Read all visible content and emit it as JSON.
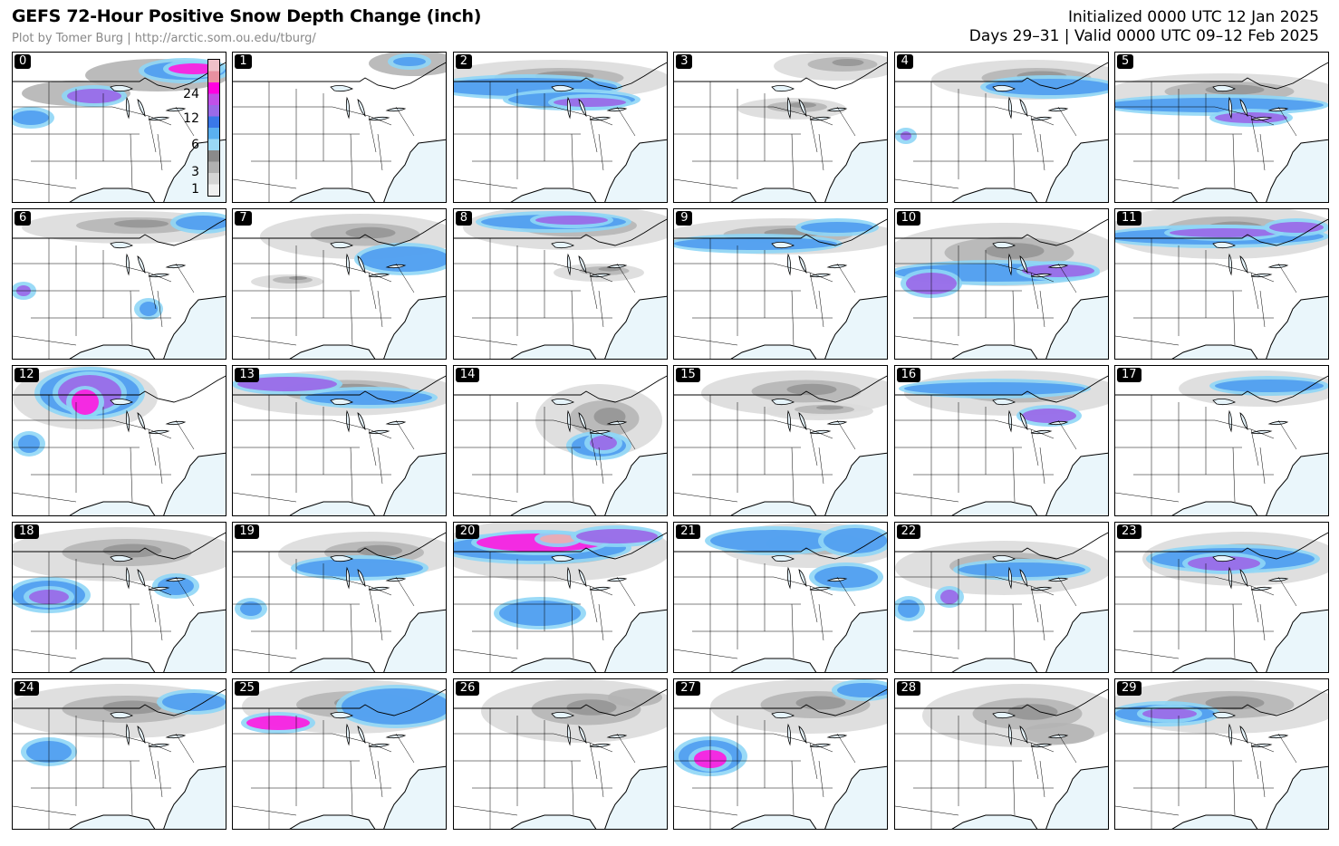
{
  "header": {
    "title": "GEFS 72-Hour Positive Snow Depth Change (inch)",
    "credit": "Plot by Tomer Burg | http://arctic.som.ou.edu/tburg/",
    "initialized": "Initialized 0000 UTC 12 Jan 2025",
    "valid": "Days 29–31 | Valid 0000 UTC 09–12 Feb 2025"
  },
  "colorbar": {
    "ticks": [
      "24",
      "12",
      "6",
      "3",
      "1"
    ],
    "colors": [
      "#f0f0f0",
      "#d4d4d4",
      "#b0b0b0",
      "#8a8a8a",
      "#9ad8f5",
      "#5ab0f0",
      "#3a78e8",
      "#9a6ae8",
      "#c050e8",
      "#ff00e0",
      "#e890a0",
      "#f0c0c8"
    ]
  },
  "colors": {
    "ocean": "#eaf6fb",
    "land": "#ffffff",
    "light_snow": "#dcdcdc",
    "mid_snow": "#b4b4b4",
    "dark_snow": "#8c8c8c",
    "cyan": "#8fd6f6",
    "blue": "#4f9cf0",
    "purple": "#9a66e8",
    "magenta": "#ff18e0",
    "pink": "#f0a8b0"
  },
  "members": [
    {
      "label": "0"
    },
    {
      "label": "1"
    },
    {
      "label": "2"
    },
    {
      "label": "3"
    },
    {
      "label": "4"
    },
    {
      "label": "5"
    },
    {
      "label": "6"
    },
    {
      "label": "7"
    },
    {
      "label": "8"
    },
    {
      "label": "9"
    },
    {
      "label": "10"
    },
    {
      "label": "11"
    },
    {
      "label": "12"
    },
    {
      "label": "13"
    },
    {
      "label": "14"
    },
    {
      "label": "15"
    },
    {
      "label": "16"
    },
    {
      "label": "17"
    },
    {
      "label": "18"
    },
    {
      "label": "19"
    },
    {
      "label": "20"
    },
    {
      "label": "21"
    },
    {
      "label": "22"
    },
    {
      "label": "23"
    },
    {
      "label": "24"
    },
    {
      "label": "25"
    },
    {
      "label": "26"
    },
    {
      "label": "27"
    },
    {
      "label": "28"
    },
    {
      "label": "29"
    }
  ]
}
